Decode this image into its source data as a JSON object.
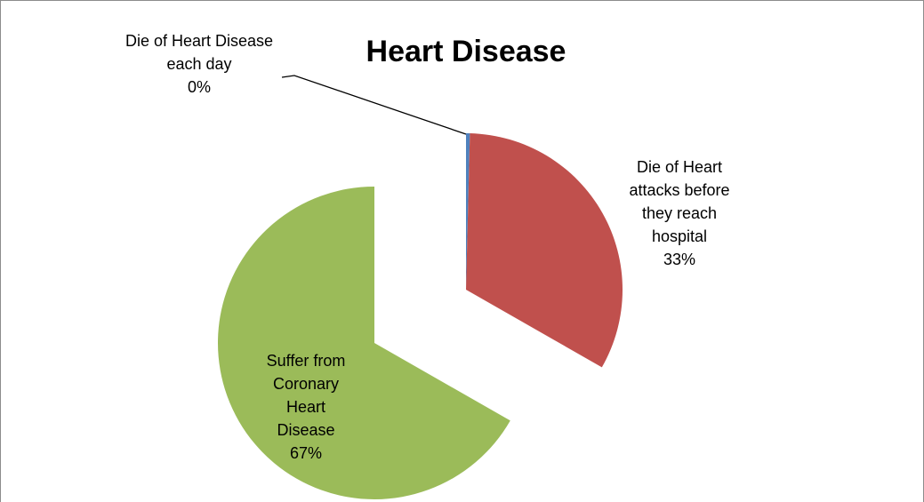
{
  "chart_data": {
    "type": "pie",
    "title": "Heart Disease",
    "categories": [
      "Die of Heart Disease each day",
      "Die of Heart attacks before they reach hospital",
      "Suffer from Coronary Heart Disease"
    ],
    "values": [
      0.4,
      33,
      67
    ],
    "value_labels": [
      "0%",
      "33%",
      "67%"
    ],
    "colors": [
      "#4f81bd",
      "#c0504d",
      "#9bbb59"
    ]
  }
}
